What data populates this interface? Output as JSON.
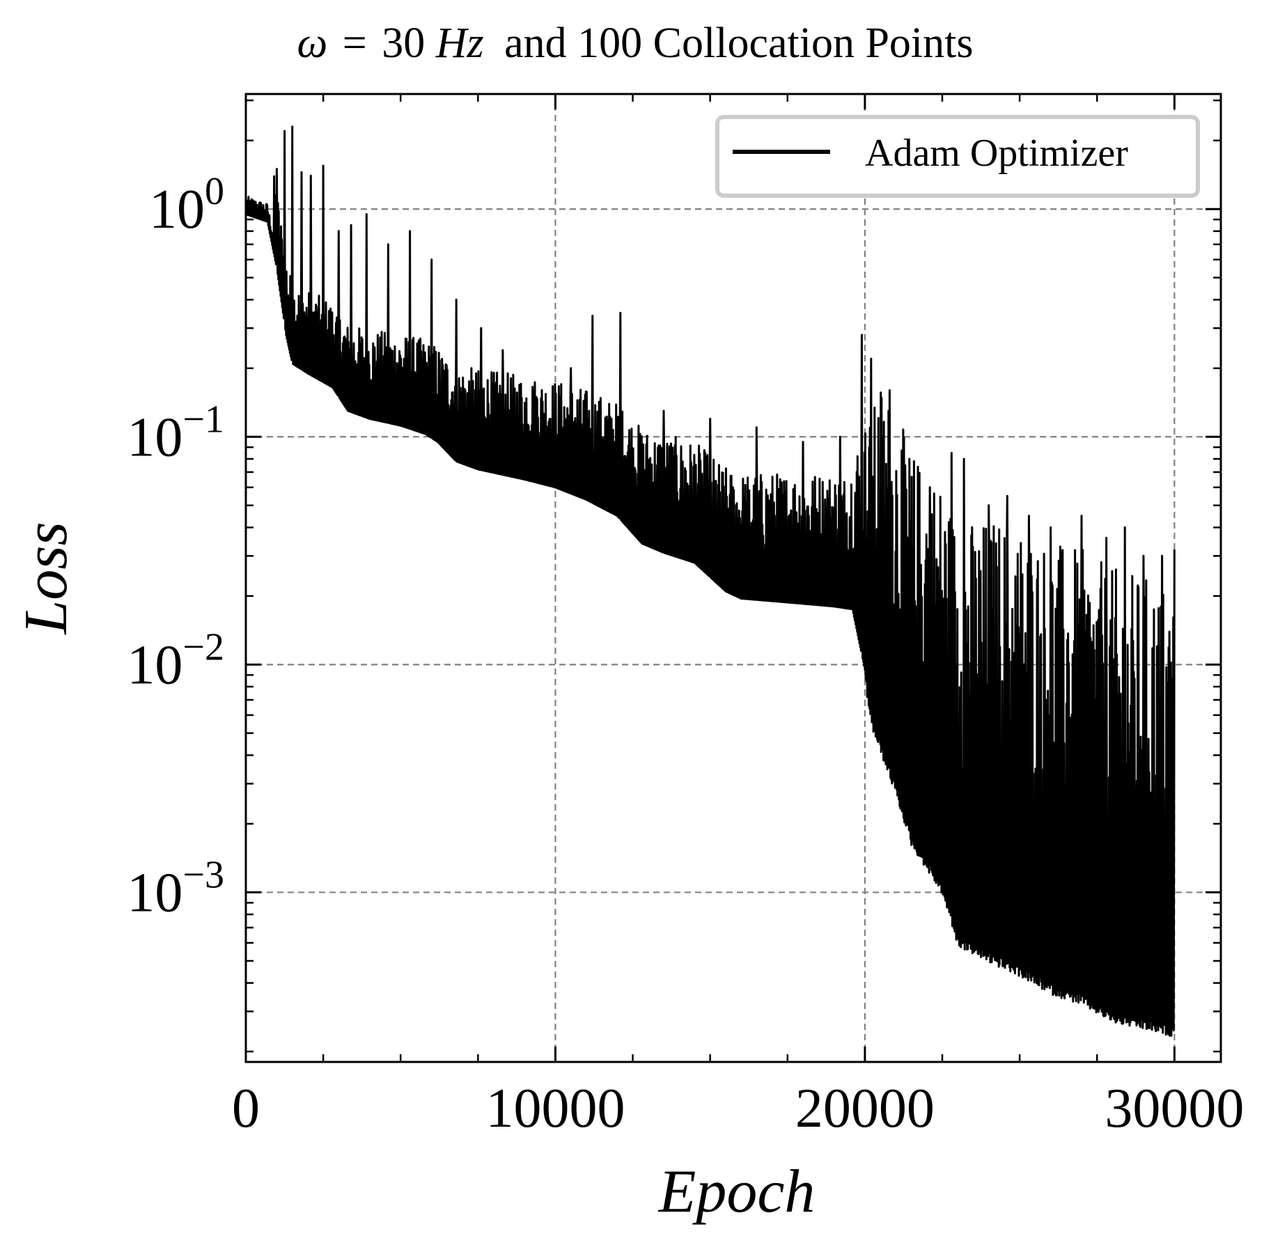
{
  "chart_data": {
    "type": "line",
    "title": {
      "symbol": "ω",
      "equals": "=",
      "value": "30",
      "unit": "Hz",
      "rest": "and 100 Collocation Points"
    },
    "xlabel": "Epoch",
    "ylabel": "Loss",
    "xscale": "linear",
    "yscale": "log",
    "xlim": [
      0,
      31500
    ],
    "ylim": [
      0.00018,
      3.2
    ],
    "xticks": [
      0,
      10000,
      20000,
      30000
    ],
    "xtick_labels": [
      "0",
      "10000",
      "20000",
      "30000"
    ],
    "yticks": [
      0.001,
      0.01,
      0.1,
      1
    ],
    "ytick_labels": [
      {
        "base": "10",
        "exp": "−3"
      },
      {
        "base": "10",
        "exp": "−2"
      },
      {
        "base": "10",
        "exp": "−1"
      },
      {
        "base": "10",
        "exp": "0"
      }
    ],
    "grid": true,
    "legend": {
      "position": "top-right",
      "entries": [
        "Adam Optimizer"
      ]
    },
    "series": [
      {
        "name": "Adam Optimizer",
        "color": "#000000",
        "baseline": {
          "x": [
            0,
            700,
            1000,
            1300,
            1500,
            2000,
            2800,
            3300,
            4000,
            5000,
            5800,
            6200,
            6800,
            7500,
            9000,
            10000,
            11000,
            12000,
            12800,
            13500,
            14500,
            15500,
            16000,
            17000,
            18000,
            19000,
            19600,
            20000,
            20200,
            21000,
            21500,
            22500,
            23000,
            23500,
            24000,
            25000,
            26000,
            27000,
            28000,
            29000,
            30000
          ],
          "y": [
            0.95,
            0.88,
            0.55,
            0.28,
            0.21,
            0.19,
            0.165,
            0.13,
            0.12,
            0.112,
            0.103,
            0.095,
            0.078,
            0.072,
            0.065,
            0.06,
            0.053,
            0.045,
            0.034,
            0.031,
            0.028,
            0.021,
            0.0195,
            0.019,
            0.0185,
            0.018,
            0.0175,
            0.0095,
            0.006,
            0.003,
            0.0018,
            0.0011,
            0.00065,
            0.0006,
            0.00055,
            0.00048,
            0.0004,
            0.00036,
            0.0003,
            0.00028,
            0.00026
          ]
        },
        "spikes": [
          {
            "x": 1000,
            "y": 1.5
          },
          {
            "x": 1250,
            "y": 2.2
          },
          {
            "x": 1500,
            "y": 2.3
          },
          {
            "x": 1800,
            "y": 1.45
          },
          {
            "x": 2100,
            "y": 1.4
          },
          {
            "x": 2500,
            "y": 1.55
          },
          {
            "x": 3000,
            "y": 0.8
          },
          {
            "x": 3400,
            "y": 0.85
          },
          {
            "x": 3900,
            "y": 0.95
          },
          {
            "x": 4600,
            "y": 0.7
          },
          {
            "x": 5300,
            "y": 0.8
          },
          {
            "x": 6000,
            "y": 0.6
          },
          {
            "x": 6800,
            "y": 0.4
          },
          {
            "x": 7600,
            "y": 0.3
          },
          {
            "x": 8300,
            "y": 0.24
          },
          {
            "x": 9300,
            "y": 0.16
          },
          {
            "x": 10500,
            "y": 0.2
          },
          {
            "x": 11200,
            "y": 0.34
          },
          {
            "x": 12100,
            "y": 0.35
          },
          {
            "x": 13500,
            "y": 0.13
          },
          {
            "x": 15000,
            "y": 0.12
          },
          {
            "x": 16500,
            "y": 0.11
          },
          {
            "x": 18000,
            "y": 0.095
          },
          {
            "x": 19200,
            "y": 0.1
          },
          {
            "x": 19900,
            "y": 0.28
          },
          {
            "x": 20200,
            "y": 0.22
          },
          {
            "x": 20800,
            "y": 0.16
          },
          {
            "x": 21300,
            "y": 0.075
          },
          {
            "x": 22100,
            "y": 0.06
          },
          {
            "x": 22800,
            "y": 0.085
          },
          {
            "x": 23200,
            "y": 0.08
          },
          {
            "x": 24000,
            "y": 0.05
          },
          {
            "x": 24600,
            "y": 0.055
          },
          {
            "x": 25300,
            "y": 0.045
          },
          {
            "x": 26000,
            "y": 0.04
          },
          {
            "x": 27000,
            "y": 0.045
          },
          {
            "x": 27800,
            "y": 0.036
          },
          {
            "x": 28400,
            "y": 0.04
          },
          {
            "x": 29000,
            "y": 0.03
          },
          {
            "x": 29600,
            "y": 0.03
          },
          {
            "x": 30000,
            "y": 0.032
          }
        ]
      }
    ]
  }
}
